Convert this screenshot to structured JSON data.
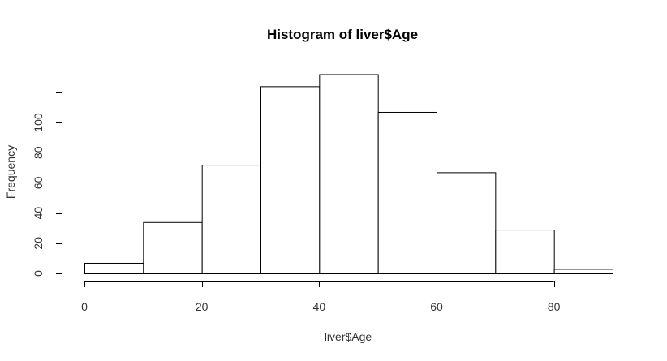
{
  "chart_data": {
    "type": "bar",
    "title": "Histogram of liver$Age",
    "xlabel": "liver$Age",
    "ylabel": "Frequency",
    "bins": [
      {
        "from": 0,
        "to": 10,
        "count": 7
      },
      {
        "from": 10,
        "to": 20,
        "count": 34
      },
      {
        "from": 20,
        "to": 30,
        "count": 72
      },
      {
        "from": 30,
        "to": 40,
        "count": 124
      },
      {
        "from": 40,
        "to": 50,
        "count": 132
      },
      {
        "from": 50,
        "to": 60,
        "count": 107
      },
      {
        "from": 60,
        "to": 70,
        "count": 67
      },
      {
        "from": 70,
        "to": 80,
        "count": 29
      },
      {
        "from": 80,
        "to": 90,
        "count": 3
      }
    ],
    "xlim": [
      0,
      90
    ],
    "ylim": [
      0,
      132
    ],
    "xticks": [
      0,
      20,
      40,
      60,
      80
    ],
    "yticks": [
      0,
      20,
      40,
      60,
      80,
      100
    ],
    "grid": false,
    "legend": "none",
    "colors": {
      "bar_fill": "#ffffff",
      "bar_edge": "#000000"
    }
  }
}
